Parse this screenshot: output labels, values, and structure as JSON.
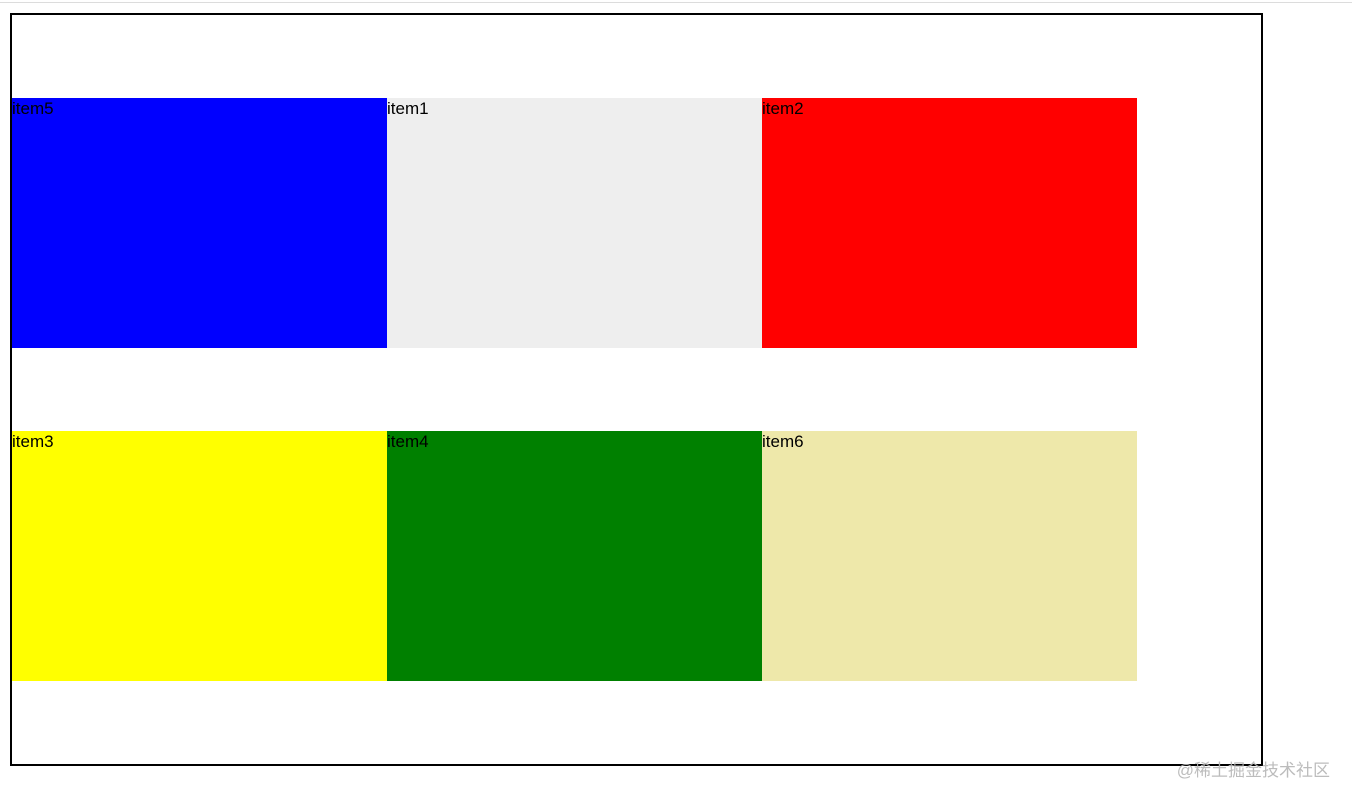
{
  "page": {
    "watermark": "@稀土掘金技术社区"
  },
  "flex_demo": {
    "items": [
      {
        "label": "item5",
        "color": "#0000ff"
      },
      {
        "label": "item1",
        "color": "#eeeeee"
      },
      {
        "label": "item2",
        "color": "#ff0000"
      },
      {
        "label": "item3",
        "color": "#ffff00"
      },
      {
        "label": "item4",
        "color": "#008000"
      },
      {
        "label": "item6",
        "color": "#eee8aa"
      }
    ]
  },
  "colors": {
    "border": "#000000",
    "text": "#000000",
    "watermark": "#b5b5b5",
    "top_divider": "#dcdcdc",
    "page_background": "#ffffff"
  }
}
